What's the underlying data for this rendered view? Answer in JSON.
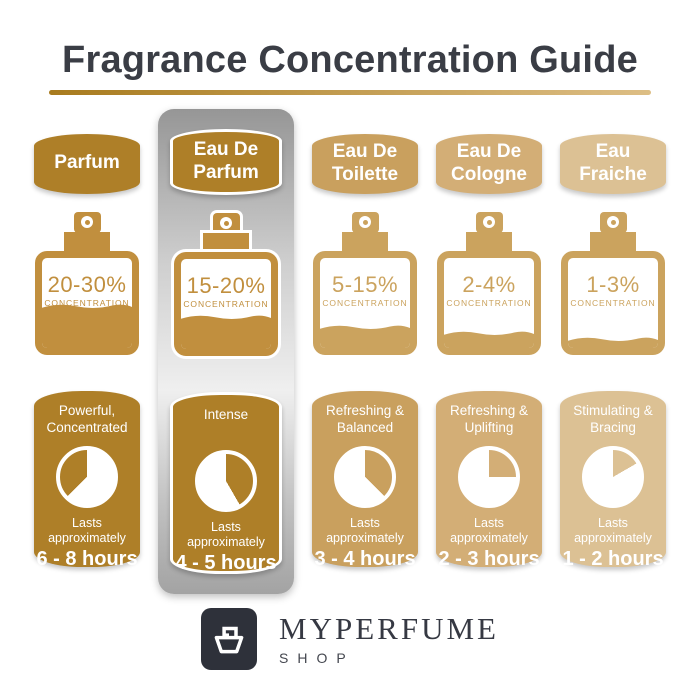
{
  "title": "Fragrance Concentration Guide",
  "palette": {
    "title_color": "#3A3D45",
    "rule_left": "#A87B1E",
    "rule_right": "#DDBE85",
    "silver_top": "#969696",
    "silver_mid": "#EFEFEF",
    "silver_bottom": "#A3A3A3",
    "logo_bg": "#2E313A"
  },
  "columns": [
    {
      "name": "Parfum",
      "color": "#AE7F28",
      "bottle_color": "#C18F3E",
      "concentration": "20-30%",
      "concentration_label": "CONCENTRATION",
      "fill_percent": 42,
      "description": "Powerful, Concentrated",
      "lasts_label": "Lasts approximately",
      "duration": "6 - 8 hours",
      "pie": {
        "start": 225,
        "end": 360
      },
      "highlighted": false
    },
    {
      "name": "Eau De Parfum",
      "color": "#AE7F28",
      "bottle_color": "#C18F3E",
      "concentration": "15-20%",
      "concentration_label": "CONCENTRATION",
      "fill_percent": 31,
      "description": "Intense",
      "lasts_label": "Lasts approximately",
      "duration": "4 - 5 hours",
      "pie": {
        "start": 0,
        "end": 150
      },
      "highlighted": true
    },
    {
      "name": "Eau De Toilette",
      "color": "#C9A05E",
      "bottle_color": "#CBA35E",
      "concentration": "5-15%",
      "concentration_label": "CONCENTRATION",
      "fill_percent": 19,
      "description": "Refreshing & Balanced",
      "lasts_label": "Lasts approximately",
      "duration": "3 - 4 hours",
      "pie": {
        "start": 0,
        "end": 135
      },
      "highlighted": false
    },
    {
      "name": "Eau De Cologne",
      "color": "#D3AE76",
      "bottle_color": "#CBA35E",
      "concentration": "2-4%",
      "concentration_label": "CONCENTRATION",
      "fill_percent": 12,
      "description": "Refreshing & Uplifting",
      "lasts_label": "Lasts approximately",
      "duration": "2 - 3 hours",
      "pie": {
        "start": 0,
        "end": 90
      },
      "highlighted": false
    },
    {
      "name": "Eau Fraiche",
      "color": "#DCC194",
      "bottle_color": "#CBA35E",
      "concentration": "1-3%",
      "concentration_label": "CONCENTRATION",
      "fill_percent": 5,
      "description": "Stimulating & Bracing",
      "lasts_label": "Lasts approximately",
      "duration": "1 - 2 hours",
      "pie": {
        "start": 0,
        "end": 60
      },
      "highlighted": false
    }
  ],
  "footer": {
    "brand": "MYPERFUME",
    "sub": "SHOP"
  }
}
